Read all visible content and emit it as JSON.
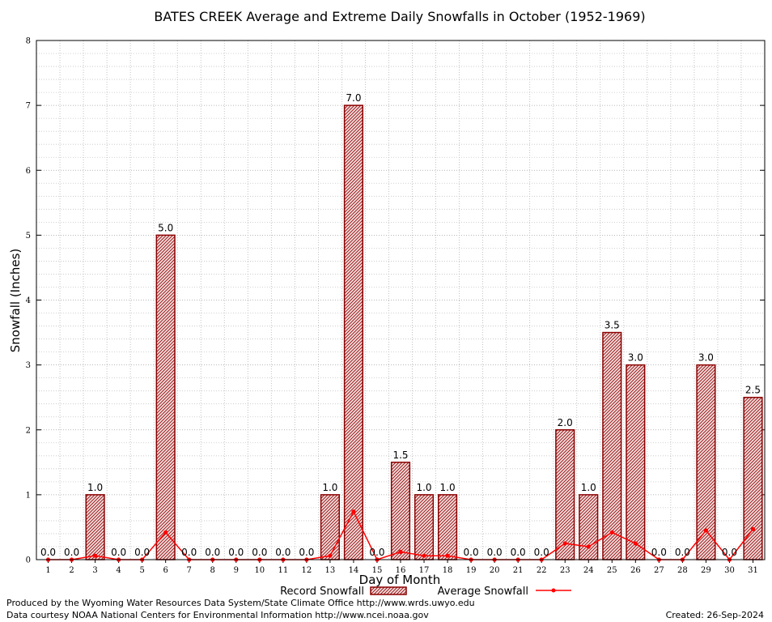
{
  "chart_data": {
    "type": "bar",
    "title": "BATES CREEK Average and Extreme Daily Snowfalls in October (1952-1969)",
    "xlabel": "Day of Month",
    "ylabel": "Snowfall (Inches)",
    "ylim": [
      0,
      8
    ],
    "yticks": [
      "0",
      "1",
      "2",
      "3",
      "4",
      "5",
      "6",
      "7",
      "8"
    ],
    "categories": [
      "1",
      "2",
      "3",
      "4",
      "5",
      "6",
      "7",
      "8",
      "9",
      "10",
      "11",
      "12",
      "13",
      "14",
      "15",
      "16",
      "17",
      "18",
      "19",
      "20",
      "21",
      "22",
      "23",
      "24",
      "25",
      "26",
      "27",
      "28",
      "29",
      "30",
      "31"
    ],
    "series": [
      {
        "name": "Record Snowfall",
        "kind": "bar",
        "color": "#8b0000",
        "values": [
          0,
          0,
          1,
          0,
          0,
          5,
          0,
          0,
          0,
          0,
          0,
          0,
          1,
          7,
          0,
          1.5,
          1,
          1,
          0,
          0,
          0,
          0,
          2,
          1,
          3.5,
          3,
          0,
          0,
          3,
          0,
          2.5
        ],
        "labels": [
          "0.0",
          "0.0",
          "1.0",
          "0.0",
          "0.0",
          "5.0",
          "0.0",
          "0.0",
          "0.0",
          "0.0",
          "0.0",
          "0.0",
          "1.0",
          "7.0",
          "0.0",
          "1.5",
          "1.0",
          "1.0",
          "0.0",
          "0.0",
          "0.0",
          "0.0",
          "2.0",
          "1.0",
          "3.5",
          "3.0",
          "0.0",
          "0.0",
          "3.0",
          "0.0",
          "2.5"
        ]
      },
      {
        "name": "Average Snowfall",
        "kind": "line",
        "color": "#ff0000",
        "values": [
          0,
          0,
          0.06,
          0,
          0,
          0.42,
          0,
          0,
          0,
          0,
          0,
          0,
          0.06,
          0.74,
          0,
          0.12,
          0.06,
          0.06,
          0,
          0,
          0,
          0,
          0.25,
          0.2,
          0.42,
          0.25,
          0,
          0,
          0.45,
          0,
          0.47
        ]
      }
    ],
    "grid": true,
    "legend": "bottom-center"
  },
  "footer": {
    "produced_by": "Produced by the Wyoming Water Resources Data System/State Climate Office http://www.wrds.uwyo.edu",
    "courtesy": "Data courtesy NOAA National Centers for Environmental Information http://www.ncei.noaa.gov",
    "created": "Created: 26-Sep-2024"
  }
}
